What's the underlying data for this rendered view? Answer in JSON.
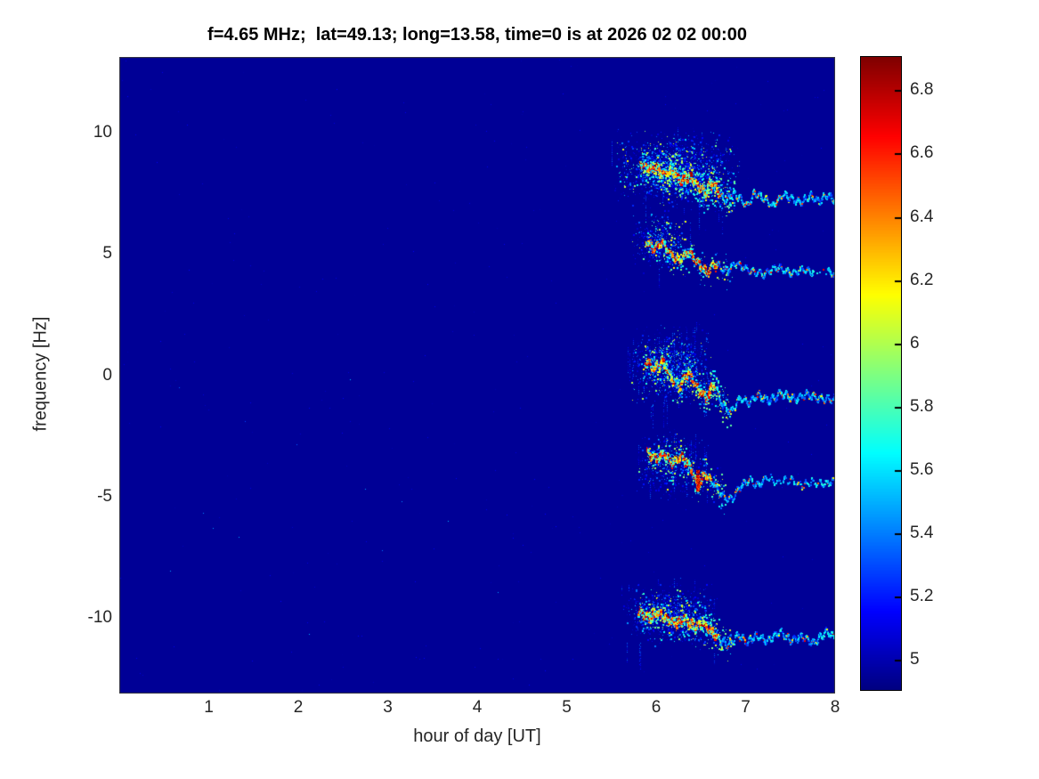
{
  "chart_data": {
    "type": "heatmap",
    "subtype": "doppler-spectrogram",
    "title": "f=4.65 MHz;  lat=49.13; long=13.58, time=0 is at 2026 02 02 00:00",
    "xlabel": "hour of day [UT]",
    "ylabel": "frequency [Hz]",
    "xlim": [
      0,
      8
    ],
    "ylim": [
      -13.1,
      13.1
    ],
    "xticks": [
      1,
      2,
      3,
      4,
      5,
      6,
      7,
      8
    ],
    "yticks": [
      10,
      5,
      0,
      -5,
      -10
    ],
    "grid": false,
    "legend": "none",
    "colormap": "jet",
    "background_value": 4.95,
    "colorbar": {
      "position": "right",
      "min": 4.905,
      "max": 6.905,
      "ticks": [
        5,
        5.2,
        5.4,
        5.6,
        5.8,
        6,
        6.2,
        6.4,
        6.6,
        6.8
      ]
    },
    "noise": {
      "points": 360,
      "val_min": 4.95,
      "val_max": 5.15,
      "bright_specks": 14
    },
    "bands": [
      {
        "label": "doppler-trace-plus8Hz",
        "cloud": {
          "h_min": 5.5,
          "h_max": 6.95,
          "f_center": 8.45,
          "f_spread": 1.0,
          "points": 1600
        },
        "striations": 26,
        "hot_end": 6.72,
        "osc_amp": 0.12,
        "osc_freq": 14,
        "jitter": 0.14,
        "gaps": [],
        "blobs": [],
        "trace": [
          [
            5.82,
            8.75
          ],
          [
            5.92,
            8.5
          ],
          [
            6.0,
            8.62
          ],
          [
            6.08,
            8.3
          ],
          [
            6.18,
            8.45
          ],
          [
            6.28,
            8.0
          ],
          [
            6.38,
            8.2
          ],
          [
            6.48,
            7.75
          ],
          [
            6.55,
            7.55
          ],
          [
            6.62,
            7.95
          ],
          [
            6.7,
            7.5
          ],
          [
            6.78,
            7.15
          ],
          [
            6.85,
            7.5
          ],
          [
            6.93,
            7.3
          ],
          [
            7.02,
            6.95
          ],
          [
            7.1,
            7.5
          ],
          [
            7.2,
            7.3
          ],
          [
            7.3,
            6.95
          ],
          [
            7.42,
            7.45
          ],
          [
            7.52,
            7.25
          ],
          [
            7.62,
            7.1
          ],
          [
            7.72,
            7.4
          ],
          [
            7.82,
            7.15
          ],
          [
            7.92,
            7.4
          ],
          [
            8.0,
            7.2
          ]
        ]
      },
      {
        "label": "doppler-trace-plus4Hz",
        "cloud": {
          "h_min": 5.72,
          "h_max": 6.4,
          "f_center": 5.5,
          "f_spread": 0.75,
          "points": 420
        },
        "striations": 10,
        "hot_end": 6.7,
        "osc_amp": 0.12,
        "osc_freq": 13,
        "jitter": 0.13,
        "gaps": [
          [
            7.76,
            7.92
          ]
        ],
        "blobs": [],
        "trace": [
          [
            5.88,
            5.55
          ],
          [
            5.98,
            5.2
          ],
          [
            6.06,
            5.5
          ],
          [
            6.16,
            5.0
          ],
          [
            6.26,
            4.7
          ],
          [
            6.36,
            5.1
          ],
          [
            6.46,
            4.65
          ],
          [
            6.56,
            4.25
          ],
          [
            6.66,
            4.6
          ],
          [
            6.76,
            4.3
          ],
          [
            6.9,
            4.6
          ],
          [
            7.05,
            4.3
          ],
          [
            7.2,
            4.15
          ],
          [
            7.35,
            4.45
          ],
          [
            7.5,
            4.2
          ],
          [
            7.65,
            4.35
          ],
          [
            7.75,
            4.25
          ],
          [
            7.85,
            4.3
          ],
          [
            7.95,
            4.25
          ],
          [
            8.0,
            4.1
          ]
        ]
      },
      {
        "label": "doppler-trace-0Hz",
        "cloud": {
          "h_min": 5.68,
          "h_max": 6.62,
          "f_center": 0.4,
          "f_spread": 1.0,
          "points": 950
        },
        "striations": 46,
        "hot_end": 6.68,
        "osc_amp": 0.13,
        "osc_freq": 13,
        "jitter": 0.15,
        "gaps": [],
        "blobs": [],
        "trace": [
          [
            5.88,
            0.6
          ],
          [
            5.98,
            0.25
          ],
          [
            6.06,
            0.6
          ],
          [
            6.16,
            -0.05
          ],
          [
            6.26,
            -0.45
          ],
          [
            6.36,
            0.15
          ],
          [
            6.46,
            -0.5
          ],
          [
            6.56,
            -0.95
          ],
          [
            6.64,
            -0.3
          ],
          [
            6.74,
            -1.2
          ],
          [
            6.84,
            -1.5
          ],
          [
            6.94,
            -0.95
          ],
          [
            7.04,
            -1.15
          ],
          [
            7.14,
            -0.8
          ],
          [
            7.26,
            -1.05
          ],
          [
            7.4,
            -0.75
          ],
          [
            7.55,
            -1.0
          ],
          [
            7.68,
            -0.8
          ],
          [
            7.82,
            -0.95
          ],
          [
            8.0,
            -1.0
          ]
        ]
      },
      {
        "label": "doppler-trace-minus4Hz",
        "cloud": {
          "h_min": 5.75,
          "h_max": 6.6,
          "f_center": -3.7,
          "f_spread": 0.85,
          "points": 520
        },
        "striations": 14,
        "hot_end": 6.62,
        "osc_amp": 0.12,
        "osc_freq": 13,
        "jitter": 0.14,
        "sparse_after": 7.25,
        "gaps": [],
        "blobs": [
          {
            "h": 6.465,
            "f1": -4.75,
            "f2": -3.9,
            "val": 6.55
          }
        ],
        "trace": [
          [
            5.9,
            -3.15
          ],
          [
            6.0,
            -3.5
          ],
          [
            6.08,
            -3.2
          ],
          [
            6.18,
            -3.6
          ],
          [
            6.28,
            -3.35
          ],
          [
            6.38,
            -3.75
          ],
          [
            6.46,
            -4.55
          ],
          [
            6.54,
            -4.05
          ],
          [
            6.64,
            -4.45
          ],
          [
            6.74,
            -4.95
          ],
          [
            6.84,
            -5.15
          ],
          [
            6.94,
            -4.6
          ],
          [
            7.04,
            -4.3
          ],
          [
            7.14,
            -4.55
          ],
          [
            7.24,
            -4.2
          ],
          [
            7.36,
            -4.4
          ],
          [
            7.5,
            -4.3
          ],
          [
            7.62,
            -4.55
          ],
          [
            7.75,
            -4.4
          ],
          [
            7.88,
            -4.5
          ],
          [
            8.0,
            -4.35
          ]
        ]
      },
      {
        "label": "doppler-trace-minus10Hz",
        "cloud": {
          "h_min": 5.6,
          "h_max": 6.7,
          "f_center": -9.8,
          "f_spread": 0.8,
          "points": 850
        },
        "striations": 18,
        "hot_end": 6.68,
        "osc_amp": 0.13,
        "osc_freq": 14,
        "jitter": 0.14,
        "gaps": [],
        "blobs": [],
        "trace": [
          [
            5.8,
            -9.75
          ],
          [
            5.92,
            -9.95
          ],
          [
            6.02,
            -9.75
          ],
          [
            6.12,
            -10.05
          ],
          [
            6.22,
            -10.2
          ],
          [
            6.32,
            -10.0
          ],
          [
            6.42,
            -10.35
          ],
          [
            6.52,
            -10.25
          ],
          [
            6.62,
            -10.55
          ],
          [
            6.72,
            -10.9
          ],
          [
            6.82,
            -11.1
          ],
          [
            6.92,
            -10.7
          ],
          [
            7.02,
            -11.0
          ],
          [
            7.12,
            -10.7
          ],
          [
            7.24,
            -10.95
          ],
          [
            7.38,
            -10.55
          ],
          [
            7.5,
            -10.9
          ],
          [
            7.64,
            -10.75
          ],
          [
            7.76,
            -11.05
          ],
          [
            7.9,
            -10.55
          ],
          [
            8.0,
            -10.8
          ]
        ]
      }
    ]
  },
  "colors": {
    "figure_background": "#FFFFFF",
    "plot_background": "#00008C",
    "axis_text": "#262626",
    "title_text": "#000000",
    "colorbar_border": "#000000"
  }
}
